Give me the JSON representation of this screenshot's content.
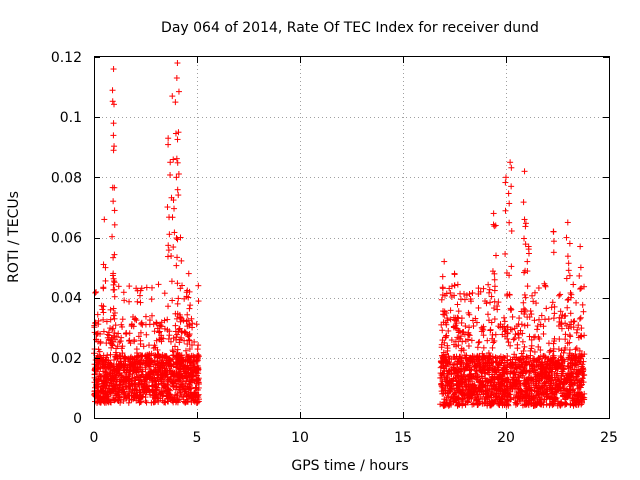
{
  "chart_data": {
    "type": "scatter",
    "title": "Day 064 of 2014, Rate Of TEC Index for receiver dund",
    "xlabel": "GPS time / hours",
    "ylabel": "ROTI / TECUs",
    "xlim": [
      0,
      25
    ],
    "ylim": [
      0,
      0.12
    ],
    "xticks": [
      0,
      5,
      10,
      15,
      20,
      25
    ],
    "xtick_labels": [
      "0",
      "5",
      "10",
      "15",
      "20",
      "25"
    ],
    "yticks": [
      0,
      0.02,
      0.04,
      0.06,
      0.08,
      0.1,
      0.12
    ],
    "ytick_labels": [
      "0",
      "0.02",
      "0.04",
      "0.06",
      "0.08",
      "0.1",
      "0.12"
    ],
    "grid": true,
    "marker": "plus",
    "color": "#ff0000",
    "series": [
      {
        "name": "ROTI",
        "segments": [
          {
            "x_start": 0.0,
            "x_end": 5.1,
            "typical_low": 0.005,
            "typical_high": 0.025
          },
          {
            "x_start": 16.8,
            "x_end": 23.8,
            "typical_low": 0.004,
            "typical_high": 0.025
          }
        ],
        "peaks": [
          {
            "x": 0.5,
            "y": 0.066
          },
          {
            "x": 0.95,
            "y": 0.116
          },
          {
            "x": 0.95,
            "y": 0.098
          },
          {
            "x": 0.95,
            "y": 0.089
          },
          {
            "x": 1.0,
            "y": 0.069
          },
          {
            "x": 3.6,
            "y": 0.093
          },
          {
            "x": 3.7,
            "y": 0.085
          },
          {
            "x": 3.8,
            "y": 0.107
          },
          {
            "x": 3.95,
            "y": 0.105
          },
          {
            "x": 4.05,
            "y": 0.118
          },
          {
            "x": 4.1,
            "y": 0.095
          },
          {
            "x": 4.0,
            "y": 0.08
          },
          {
            "x": 4.2,
            "y": 0.06
          },
          {
            "x": 4.6,
            "y": 0.048
          },
          {
            "x": 19.4,
            "y": 0.068
          },
          {
            "x": 19.5,
            "y": 0.064
          },
          {
            "x": 20.0,
            "y": 0.08
          },
          {
            "x": 20.2,
            "y": 0.085
          },
          {
            "x": 20.25,
            "y": 0.077
          },
          {
            "x": 20.9,
            "y": 0.082
          },
          {
            "x": 20.9,
            "y": 0.066
          },
          {
            "x": 21.1,
            "y": 0.057
          },
          {
            "x": 22.3,
            "y": 0.062
          },
          {
            "x": 23.0,
            "y": 0.065
          },
          {
            "x": 23.1,
            "y": 0.058
          },
          {
            "x": 23.6,
            "y": 0.057
          },
          {
            "x": 17.0,
            "y": 0.052
          },
          {
            "x": 17.5,
            "y": 0.048
          }
        ]
      }
    ]
  }
}
